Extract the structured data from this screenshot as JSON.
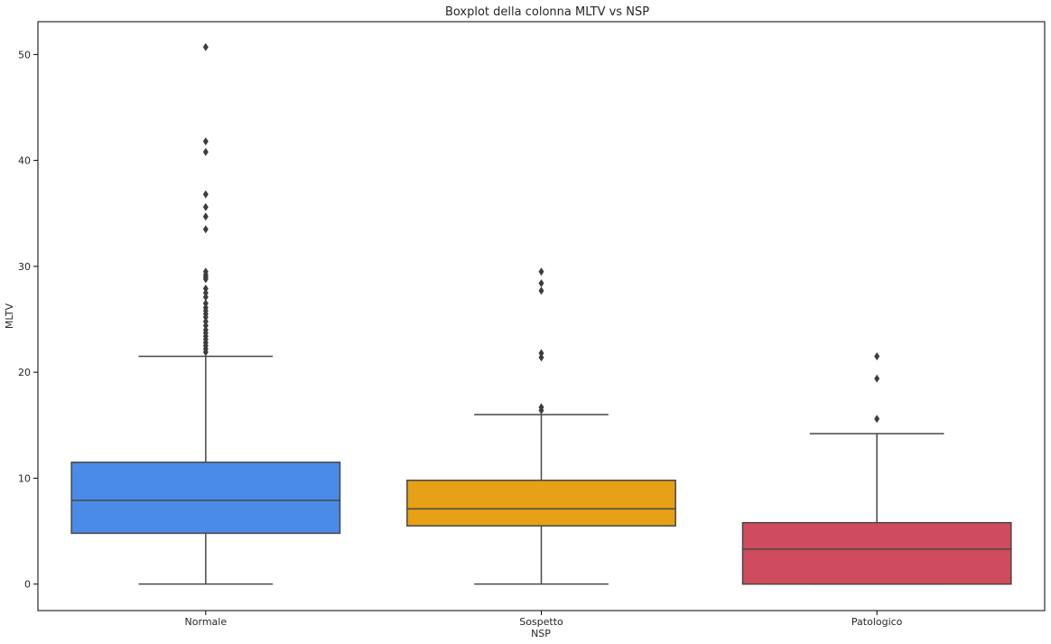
{
  "chart_data": {
    "type": "box",
    "title": "Boxplot della colonna MLTV vs NSP",
    "xlabel": "NSP",
    "ylabel": "MLTV",
    "ylim": [
      -2.5,
      53.1
    ],
    "yticks": [
      0,
      10,
      20,
      30,
      40,
      50
    ],
    "grid": false,
    "categories": [
      "Normale",
      "Sospetto",
      "Patologico"
    ],
    "series": [
      {
        "category": "Normale",
        "color": "#4a8be8",
        "whisker_low": 0,
        "q1": 4.8,
        "median": 7.9,
        "q3": 11.5,
        "whisker_high": 21.5,
        "outliers": [
          50.7,
          41.8,
          40.8,
          36.8,
          35.6,
          34.7,
          33.5,
          29.5,
          29.2,
          29.0,
          28.8,
          27.9,
          27.5,
          27.1,
          26.5,
          26.1,
          25.8,
          25.5,
          25.2,
          24.8,
          24.4,
          24.0,
          23.7,
          23.4,
          23.1,
          22.8,
          22.5,
          22.2,
          21.9
        ]
      },
      {
        "category": "Sospetto",
        "color": "#e6a117",
        "whisker_low": 0,
        "q1": 5.5,
        "median": 7.1,
        "q3": 9.8,
        "whisker_high": 16.0,
        "outliers": [
          29.5,
          28.4,
          27.7,
          21.8,
          21.4,
          16.7,
          16.4
        ]
      },
      {
        "category": "Patologico",
        "color": "#cf4b5e",
        "whisker_low": 0,
        "q1": 0,
        "median": 3.3,
        "q3": 5.8,
        "whisker_high": 14.2,
        "outliers": [
          21.5,
          19.4,
          15.6
        ]
      }
    ]
  }
}
